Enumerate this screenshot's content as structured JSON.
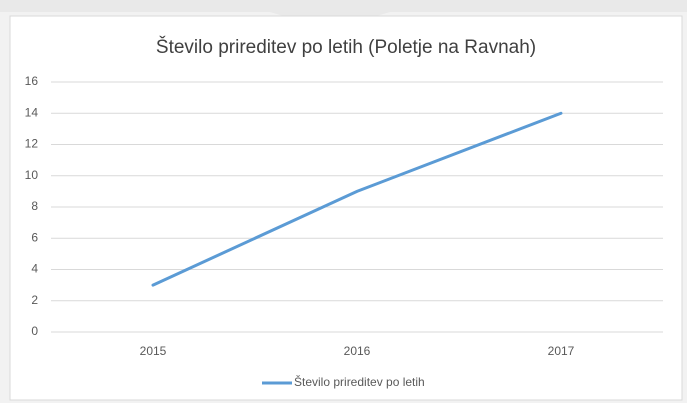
{
  "chart_data": {
    "type": "line",
    "title": "Število prireditev po letih (Poletje na Ravnah)",
    "categories": [
      "2015",
      "2016",
      "2017"
    ],
    "series": [
      {
        "name": "Število prireditev po letih",
        "color": "#5b9bd5",
        "values": [
          3,
          9,
          14
        ]
      }
    ],
    "ylim": [
      0,
      16
    ],
    "yticks": [
      0,
      2,
      4,
      6,
      8,
      10,
      12,
      14,
      16
    ],
    "grid": true,
    "legend": "bottom"
  }
}
